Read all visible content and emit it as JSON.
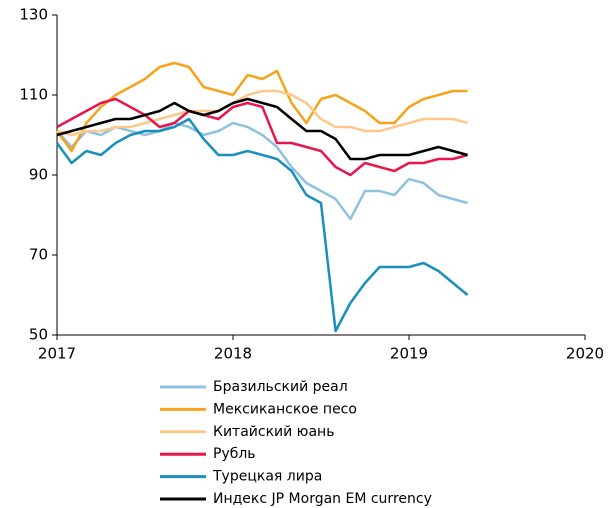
{
  "chart_data": {
    "type": "line",
    "x": [
      2017,
      2017.083,
      2017.167,
      2017.25,
      2017.333,
      2017.417,
      2017.5,
      2017.583,
      2017.667,
      2017.75,
      2017.833,
      2017.917,
      2018,
      2018.083,
      2018.167,
      2018.25,
      2018.333,
      2018.417,
      2018.5,
      2018.583,
      2018.667,
      2018.75,
      2018.833,
      2018.917,
      2019,
      2019.083,
      2019.167,
      2019.25,
      2019.333
    ],
    "series": [
      {
        "name": "Бразильский реал",
        "color": "#8ec3e0",
        "values": [
          101,
          97,
          101,
          100,
          102,
          101,
          100,
          101,
          103,
          102,
          100,
          101,
          103,
          102,
          100,
          97,
          92,
          88,
          86,
          84,
          79,
          86,
          86,
          85,
          89,
          88,
          85,
          84,
          83
        ]
      },
      {
        "name": "Мексиканское песо",
        "color": "#f5a31a",
        "values": [
          101,
          96,
          103,
          107,
          110,
          112,
          114,
          117,
          118,
          117,
          112,
          111,
          110,
          115,
          114,
          116,
          108,
          103,
          109,
          110,
          108,
          106,
          103,
          103,
          107,
          109,
          110,
          111,
          111
        ]
      },
      {
        "name": "Китайский юань",
        "color": "#fdc98a",
        "values": [
          101,
          100,
          101,
          101,
          102,
          102,
          103,
          104,
          105,
          106,
          106,
          106,
          108,
          110,
          111,
          111,
          110,
          108,
          104,
          102,
          102,
          101,
          101,
          102,
          103,
          104,
          104,
          104,
          103
        ]
      },
      {
        "name": "Рубль",
        "color": "#e8174b",
        "values": [
          102,
          104,
          106,
          108,
          109,
          107,
          105,
          102,
          103,
          106,
          105,
          104,
          107,
          108,
          107,
          98,
          98,
          97,
          96,
          92,
          90,
          93,
          92,
          91,
          93,
          93,
          94,
          94,
          95
        ]
      },
      {
        "name": "Турецкая лира",
        "color": "#1a8fbd",
        "values": [
          98,
          93,
          96,
          95,
          98,
          100,
          101,
          101,
          102,
          104,
          99,
          95,
          95,
          96,
          95,
          94,
          91,
          85,
          83,
          51,
          58,
          63,
          67,
          67,
          67,
          68,
          66,
          63,
          60
        ]
      },
      {
        "name": "Индекс JP Morgan EM currency",
        "color": "#000000",
        "values": [
          100,
          101,
          102,
          103,
          104,
          104,
          105,
          106,
          108,
          106,
          105,
          106,
          108,
          109,
          108,
          107,
          104,
          101,
          101,
          99,
          94,
          94,
          95,
          95,
          95,
          96,
          97,
          96,
          95
        ]
      }
    ],
    "xlim": [
      2017,
      2020
    ],
    "xticks": [
      2017,
      2018,
      2019,
      2020
    ],
    "ylim": [
      50,
      130
    ],
    "yticks": [
      50,
      70,
      90,
      110,
      130
    ]
  }
}
